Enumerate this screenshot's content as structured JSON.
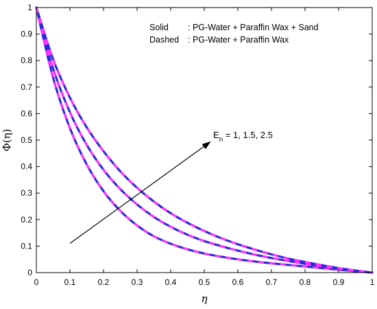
{
  "chart_data": {
    "type": "line",
    "xlabel": "η",
    "ylabel": "Φ(η)",
    "xlim": [
      0,
      1
    ],
    "ylim": [
      0,
      1
    ],
    "x_ticks": [
      "0",
      "0.1",
      "0.2",
      "0.3",
      "0.4",
      "0.5",
      "0.6",
      "0.7",
      "0.8",
      "0.9",
      "1"
    ],
    "y_ticks": [
      "0",
      "0.1",
      "0.2",
      "0.3",
      "0.4",
      "0.5",
      "0.6",
      "0.7",
      "0.8",
      "0.9",
      "1"
    ],
    "grid": false,
    "legend_lines": {
      "solid_key": "Solid",
      "solid_text": ": PG-Water + Paraffin Wax + Sand",
      "dashed_key": "Dashed",
      "dashed_text": ": PG-Water + Paraffin Wax"
    },
    "annotation": {
      "prefix": "E",
      "subscript": "n",
      "text": " = 1, 1.5, 2.5",
      "arrow_from": [
        0.1,
        0.11
      ],
      "arrow_to": [
        0.52,
        0.495
      ]
    },
    "colors": {
      "solid": "#2b2bd6",
      "dashed": "#ff33ff"
    },
    "x": [
      0,
      0.05,
      0.1,
      0.15,
      0.2,
      0.25,
      0.3,
      0.35,
      0.4,
      0.45,
      0.5,
      0.55,
      0.6,
      0.65,
      0.7,
      0.75,
      0.8,
      0.85,
      0.9,
      0.95,
      1
    ],
    "series": [
      {
        "style": "solid",
        "values": [
          1.0,
          0.735,
          0.545,
          0.408,
          0.307,
          0.233,
          0.178,
          0.137,
          0.109,
          0.088,
          0.072,
          0.06,
          0.05,
          0.042,
          0.035,
          0.029,
          0.023,
          0.017,
          0.011,
          0.005,
          0.0
        ]
      },
      {
        "style": "solid",
        "values": [
          1.0,
          0.77,
          0.605,
          0.482,
          0.388,
          0.315,
          0.257,
          0.21,
          0.173,
          0.143,
          0.119,
          0.1,
          0.083,
          0.068,
          0.055,
          0.044,
          0.033,
          0.024,
          0.015,
          0.007,
          0.0
        ]
      },
      {
        "style": "solid",
        "values": [
          1.0,
          0.805,
          0.66,
          0.548,
          0.458,
          0.382,
          0.32,
          0.268,
          0.224,
          0.188,
          0.157,
          0.13,
          0.107,
          0.087,
          0.069,
          0.053,
          0.04,
          0.028,
          0.017,
          0.008,
          0.0
        ]
      }
    ]
  }
}
